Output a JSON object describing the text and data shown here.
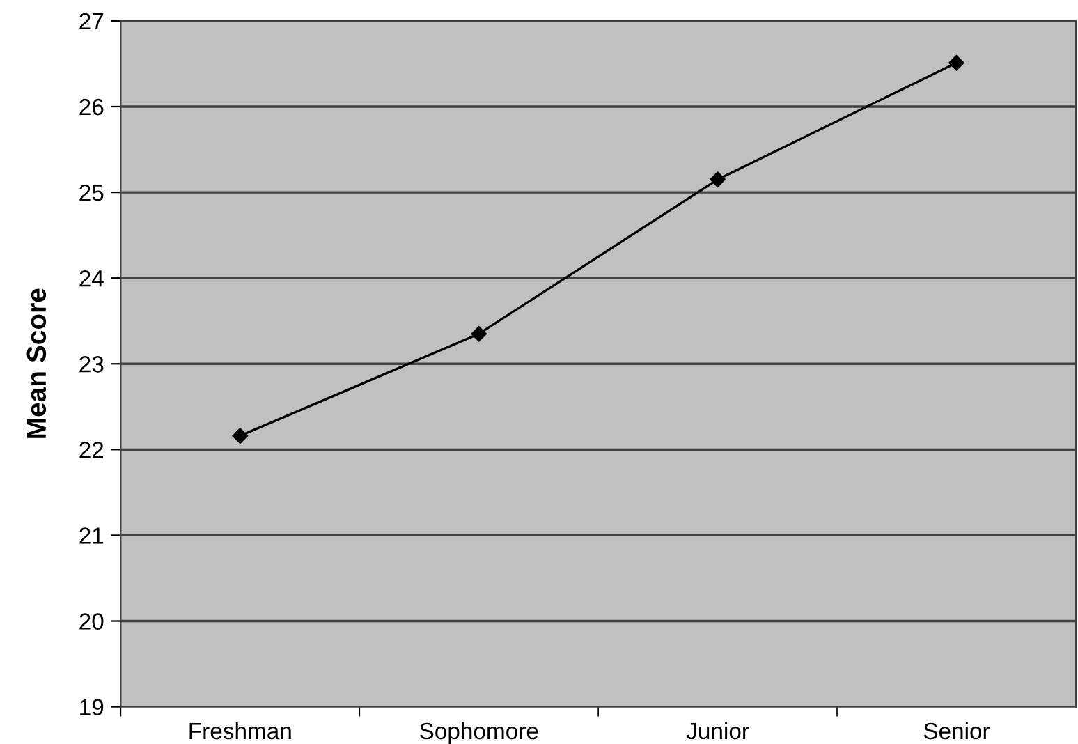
{
  "chart_data": {
    "type": "line",
    "ylabel": "Mean Score",
    "categories": [
      "Freshman",
      "Sophomore",
      "Junior",
      "Senior"
    ],
    "series": [
      {
        "color": "#000000",
        "values": [
          22.16,
          23.35,
          25.15,
          26.51
        ]
      }
    ],
    "ylim": [
      19,
      27
    ],
    "yticks": [
      19,
      20,
      21,
      22,
      23,
      24,
      25,
      26,
      27
    ],
    "grid": "y",
    "marker": "diamond",
    "line_style": "solid",
    "legend": false
  }
}
